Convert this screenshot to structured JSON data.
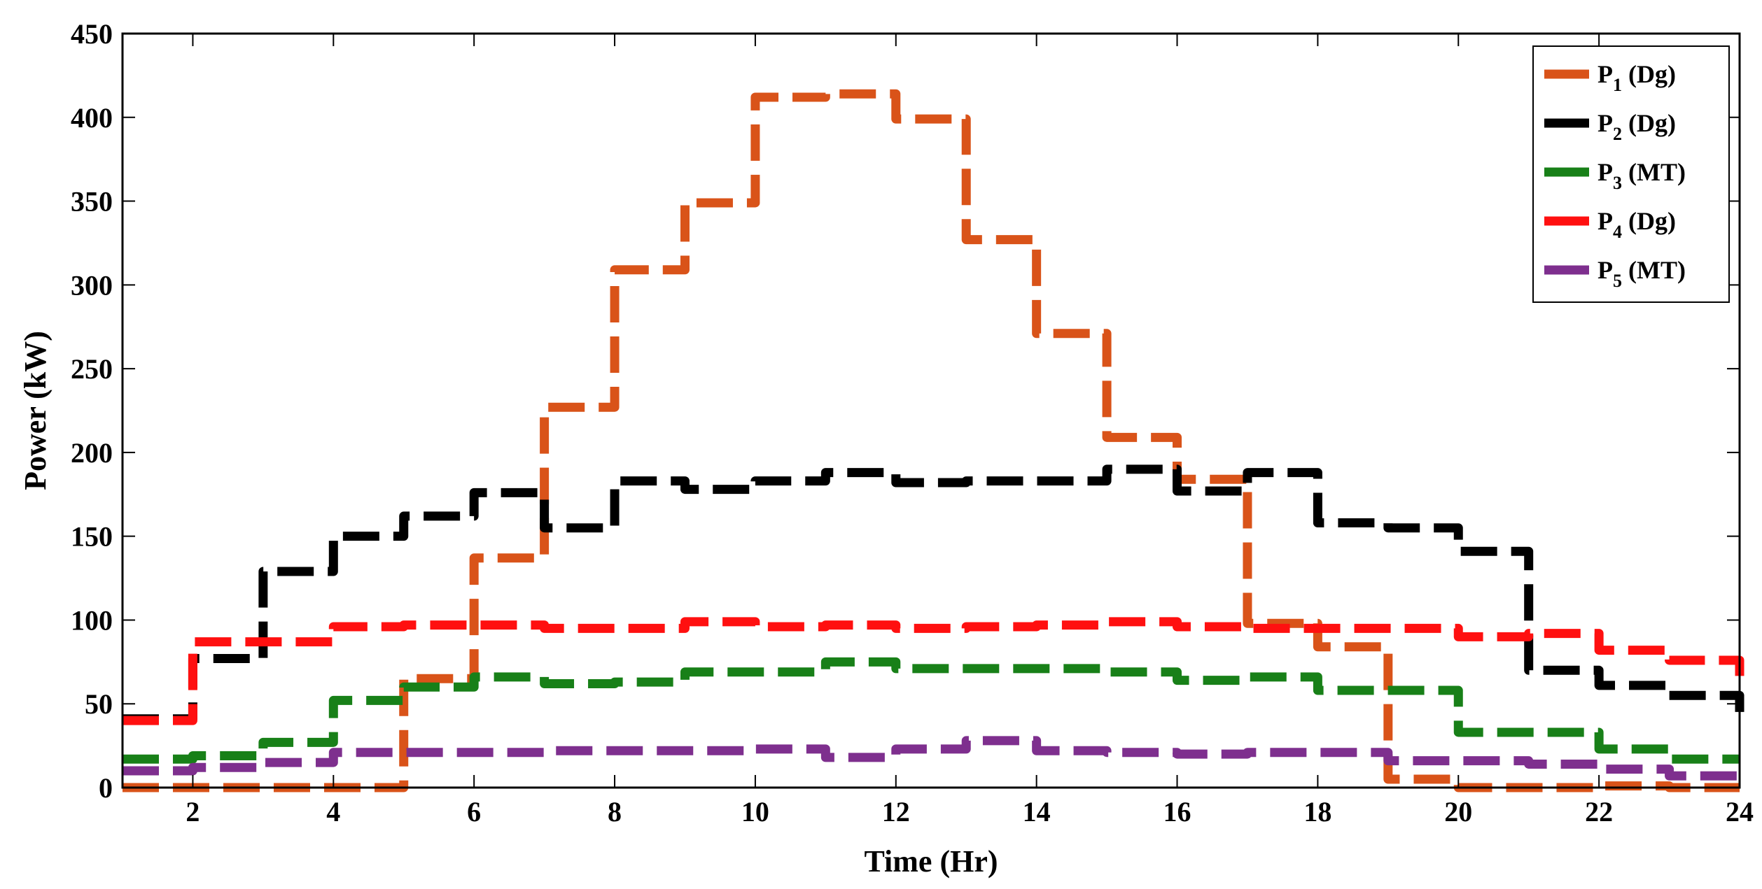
{
  "chart_data": {
    "type": "line",
    "step": true,
    "title": "",
    "xlabel": "Time (Hr)",
    "ylabel": "Power (kW)",
    "xlim": [
      1,
      24
    ],
    "ylim": [
      0,
      450
    ],
    "xticks": [
      2,
      4,
      6,
      8,
      10,
      12,
      14,
      16,
      18,
      20,
      22,
      24
    ],
    "yticks": [
      0,
      50,
      100,
      150,
      200,
      250,
      300,
      350,
      400,
      450
    ],
    "grid": false,
    "legend_position": "top-right",
    "x": [
      1,
      2,
      3,
      4,
      5,
      6,
      7,
      8,
      9,
      10,
      11,
      12,
      13,
      14,
      15,
      16,
      17,
      18,
      19,
      20,
      21,
      22,
      23,
      24
    ],
    "series": [
      {
        "name": "P1 (Dg)",
        "legend_main": "P",
        "legend_sub": "1",
        "legend_rest": " (Dg)",
        "color": "#D95319",
        "values": [
          0,
          0,
          0,
          0,
          65,
          137,
          227,
          309,
          349,
          412,
          414,
          399,
          327,
          271,
          209,
          184,
          98,
          84,
          5,
          0,
          0,
          1,
          0,
          0
        ]
      },
      {
        "name": "P2 (Dg)",
        "legend_main": "P",
        "legend_sub": "2",
        "legend_rest": " (Dg)",
        "color": "#000000",
        "values": [
          41,
          77,
          129,
          150,
          162,
          176,
          155,
          183,
          178,
          183,
          188,
          182,
          183,
          183,
          190,
          177,
          188,
          158,
          155,
          141,
          70,
          61,
          55,
          42
        ]
      },
      {
        "name": "P3 (MT)",
        "legend_main": "P",
        "legend_sub": "3",
        "legend_rest": " (MT)",
        "color": "#188018",
        "values": [
          17,
          19,
          27,
          52,
          60,
          66,
          62,
          63,
          69,
          69,
          75,
          71,
          71,
          71,
          69,
          64,
          66,
          58,
          58,
          33,
          33,
          23,
          17,
          17
        ]
      },
      {
        "name": "P4 (Dg)",
        "legend_main": "P",
        "legend_sub": "4",
        "legend_rest": " (Dg)",
        "color": "#FF1010",
        "values": [
          40,
          87,
          87,
          96,
          97,
          97,
          95,
          95,
          99,
          96,
          97,
          95,
          96,
          97,
          99,
          96,
          95,
          95,
          95,
          90,
          92,
          82,
          76,
          60
        ]
      },
      {
        "name": "P5 (MT)",
        "legend_main": "P",
        "legend_sub": "5",
        "legend_rest": " (MT)",
        "color": "#7E2F8E",
        "values": [
          10,
          12,
          15,
          21,
          21,
          21,
          22,
          22,
          22,
          23,
          18,
          23,
          28,
          22,
          21,
          20,
          21,
          21,
          16,
          16,
          14,
          11,
          7,
          7
        ]
      }
    ]
  }
}
